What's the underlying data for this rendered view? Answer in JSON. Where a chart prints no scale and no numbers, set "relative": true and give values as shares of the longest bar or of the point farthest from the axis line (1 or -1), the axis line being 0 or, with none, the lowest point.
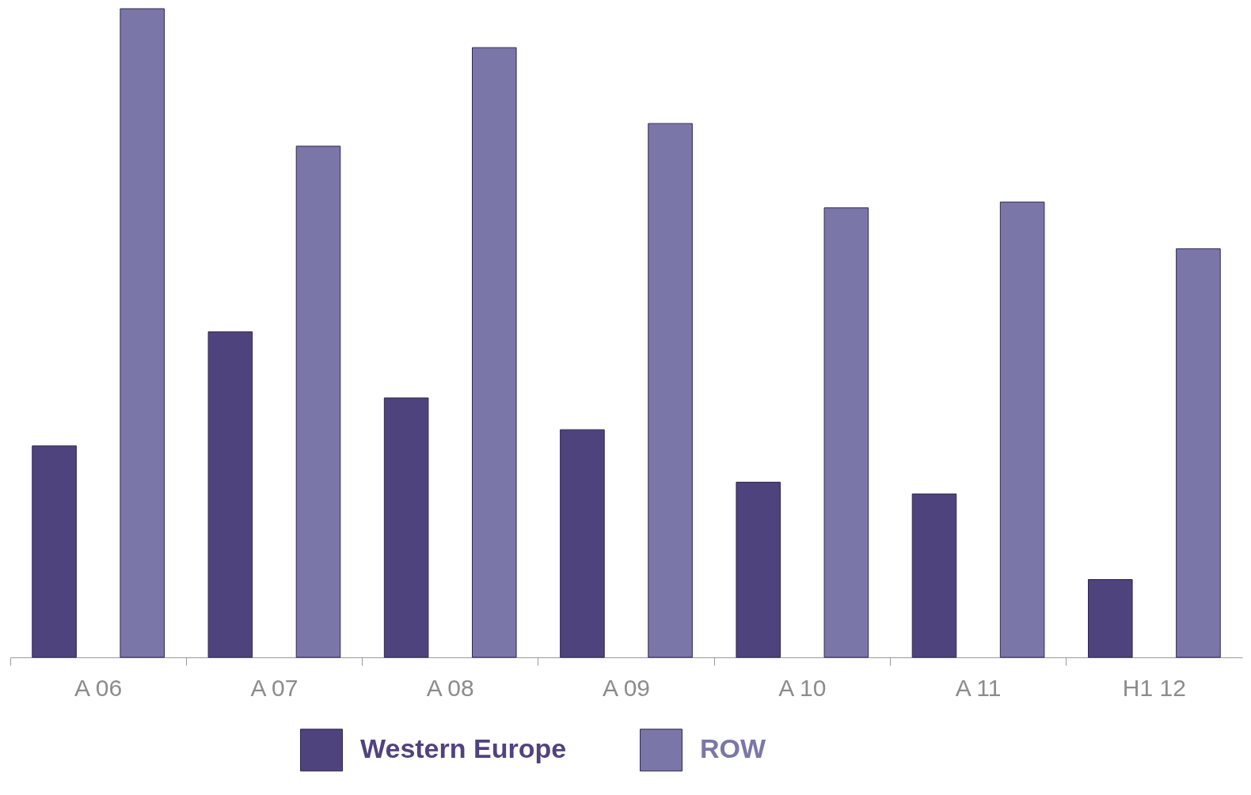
{
  "chart_data": {
    "type": "bar",
    "relative": true,
    "categories": [
      "A 06",
      "A 07",
      "A 08",
      "A 09",
      "A 10",
      "A 11",
      "H1 12"
    ],
    "series": [
      {
        "name": "Western Europe",
        "color": "#4f437e",
        "values": [
          0.326,
          0.502,
          0.4,
          0.351,
          0.27,
          0.252,
          0.12
        ]
      },
      {
        "name": "ROW",
        "color": "#7b76a8",
        "values": [
          1.0,
          0.788,
          0.94,
          0.823,
          0.693,
          0.702,
          0.63
        ]
      }
    ],
    "legend": "bottom"
  }
}
